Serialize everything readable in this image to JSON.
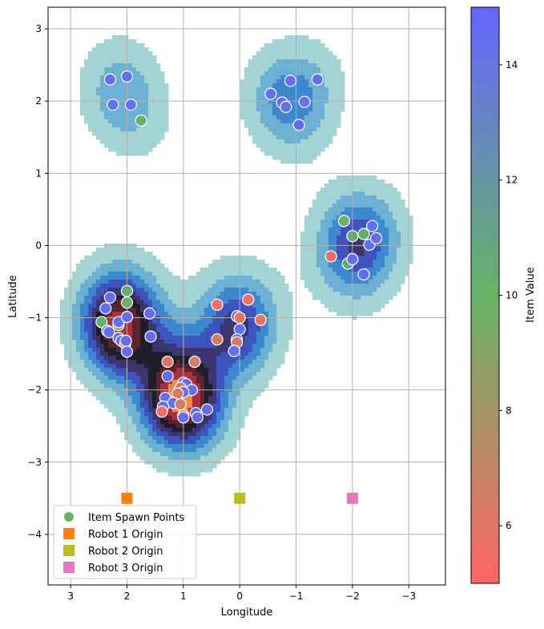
{
  "chart_data": {
    "type": "scatter",
    "title": "",
    "xlabel": "Longitude",
    "ylabel": "Latitude",
    "x_inverted": true,
    "xlim": [
      3.4,
      -3.65
    ],
    "ylim": [
      -4.7,
      3.3
    ],
    "xticks": [
      3,
      2,
      1,
      0,
      -1,
      -2,
      -3
    ],
    "xtick_labels": [
      "3",
      "2",
      "1",
      "0",
      "−1",
      "−2",
      "−3"
    ],
    "yticks": [
      3,
      2,
      1,
      0,
      -1,
      -2,
      -3,
      -4
    ],
    "ytick_labels": [
      "3",
      "2",
      "1",
      "0",
      "−1",
      "−2",
      "−3",
      "−4"
    ],
    "grid": true,
    "legend_position": "lower-left",
    "colorbar": {
      "label": "Item Value",
      "range": [
        5,
        15
      ],
      "ticks": [
        6,
        8,
        10,
        12,
        14
      ],
      "colors": [
        "#ff6666",
        "#66b366",
        "#6666ff"
      ]
    },
    "density_colors": [
      "#a3d3d3",
      "#6cb0d4",
      "#3e88d0",
      "#3f53bf",
      "#3d3570",
      "#1e1e2a",
      "#5c2430",
      "#ac2f3e",
      "#ee8a4a"
    ],
    "series": [
      {
        "name": "Item Spawn Points",
        "legend_color": "#66b366",
        "points": [
          [
            2.3,
            2.3,
            14.5
          ],
          [
            2.0,
            2.34,
            14.5
          ],
          [
            2.25,
            1.95,
            14.5
          ],
          [
            1.93,
            1.95,
            14.5
          ],
          [
            1.75,
            1.73,
            10.2
          ],
          [
            -0.55,
            2.1,
            14.5
          ],
          [
            -0.9,
            2.28,
            14.5
          ],
          [
            -1.38,
            2.3,
            14.5
          ],
          [
            -0.75,
            1.98,
            14.5
          ],
          [
            -0.82,
            1.92,
            14.5
          ],
          [
            -1.15,
            1.99,
            14.5
          ],
          [
            -1.05,
            1.67,
            14.5
          ],
          [
            -1.85,
            0.34,
            10.2
          ],
          [
            -2.2,
            0.16,
            10.3
          ],
          [
            -2.0,
            0.13,
            10.5
          ],
          [
            -2.35,
            0.27,
            14.5
          ],
          [
            -2.3,
            0.01,
            14.5
          ],
          [
            -2.42,
            0.1,
            14.5
          ],
          [
            -1.62,
            -0.15,
            5.5
          ],
          [
            -1.92,
            -0.25,
            10.4
          ],
          [
            -2.0,
            -0.19,
            14.5
          ],
          [
            -2.2,
            -0.4,
            14.8
          ],
          [
            2.0,
            -0.63,
            10.3
          ],
          [
            2.3,
            -0.72,
            14.5
          ],
          [
            2.38,
            -0.87,
            14.5
          ],
          [
            2.0,
            -0.79,
            10.2
          ],
          [
            2.45,
            -1.06,
            10.4
          ],
          [
            2.15,
            -1.1,
            10.2
          ],
          [
            2.15,
            -1.06,
            14.5
          ],
          [
            2.0,
            -0.99,
            14.5
          ],
          [
            1.6,
            -0.94,
            14.5
          ],
          [
            2.35,
            -1.18,
            14.5
          ],
          [
            2.32,
            -1.2,
            14.5
          ],
          [
            2.15,
            -1.28,
            14.5
          ],
          [
            2.1,
            -1.32,
            14.5
          ],
          [
            2.03,
            -1.36,
            6.2
          ],
          [
            2.02,
            -1.32,
            14.5
          ],
          [
            2.0,
            -1.47,
            14.5
          ],
          [
            1.58,
            -1.26,
            14.5
          ],
          [
            0.4,
            -0.82,
            5.4
          ],
          [
            -0.15,
            -0.75,
            5.5
          ],
          [
            -0.37,
            -1.03,
            6.0
          ],
          [
            0.05,
            -0.98,
            14.5
          ],
          [
            0.0,
            -1.0,
            5.8
          ],
          [
            0.0,
            -1.16,
            14.5
          ],
          [
            0.05,
            -1.3,
            14.5
          ],
          [
            0.05,
            -1.34,
            6.3
          ],
          [
            0.1,
            -1.46,
            14.5
          ],
          [
            0.4,
            -1.3,
            6.5
          ],
          [
            1.28,
            -1.61,
            6.0
          ],
          [
            0.8,
            -1.61,
            6.4
          ],
          [
            1.28,
            -1.81,
            14.5
          ],
          [
            1.0,
            -1.9,
            14.5
          ],
          [
            0.95,
            -1.92,
            14.5
          ],
          [
            1.05,
            -1.97,
            6.1
          ],
          [
            0.85,
            -2.0,
            14.5
          ],
          [
            1.0,
            -2.03,
            14.5
          ],
          [
            1.1,
            -2.05,
            6.2
          ],
          [
            1.32,
            -2.11,
            14.5
          ],
          [
            1.18,
            -2.18,
            14.5
          ],
          [
            1.05,
            -2.2,
            6.4
          ],
          [
            1.36,
            -2.23,
            14.5
          ],
          [
            1.38,
            -2.3,
            5.6
          ],
          [
            1.0,
            -2.35,
            6.6
          ],
          [
            0.78,
            -2.32,
            14.5
          ],
          [
            1.0,
            -2.38,
            14.5
          ],
          [
            0.75,
            -2.38,
            14.5
          ],
          [
            0.58,
            -2.27,
            14.5
          ]
        ]
      },
      {
        "name": "Robot 1 Origin",
        "legend_color": "#ff7f0e",
        "points": [
          [
            2.0,
            -3.5
          ]
        ]
      },
      {
        "name": "Robot 2 Origin",
        "legend_color": "#bcbd22",
        "points": [
          [
            0.0,
            -3.5
          ]
        ]
      },
      {
        "name": "Robot 3 Origin",
        "legend_color": "#e377c2",
        "points": [
          [
            -2.0,
            -3.5
          ]
        ]
      }
    ]
  }
}
